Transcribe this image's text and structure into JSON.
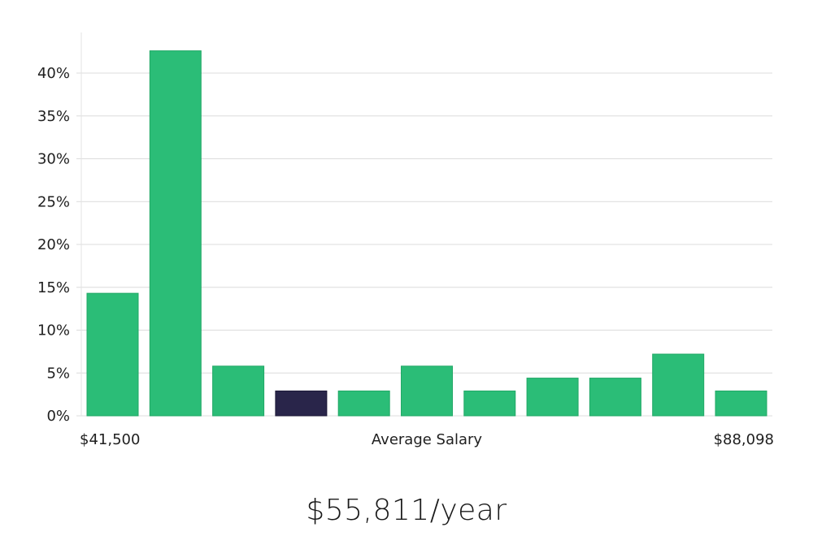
{
  "chart_data": {
    "type": "bar",
    "title": "",
    "xlabel": "Average Salary",
    "ylabel": "",
    "x_min_label": "$41,500",
    "x_max_label": "$88,098",
    "ylim": [
      0,
      45
    ],
    "yticks": [
      0,
      5,
      10,
      15,
      20,
      25,
      30,
      35,
      40
    ],
    "ytick_labels": [
      "0%",
      "5%",
      "10%",
      "15%",
      "20%",
      "25%",
      "30%",
      "35%",
      "40%"
    ],
    "values": [
      14.3,
      42.6,
      5.8,
      2.9,
      2.9,
      5.8,
      2.9,
      4.4,
      4.4,
      7.2,
      2.9
    ],
    "highlight_index": 3,
    "bar_color": "#2bbd77",
    "highlight_color": "#29254a",
    "grid": true
  },
  "summary": {
    "average_salary_text": "$55,811/year"
  }
}
